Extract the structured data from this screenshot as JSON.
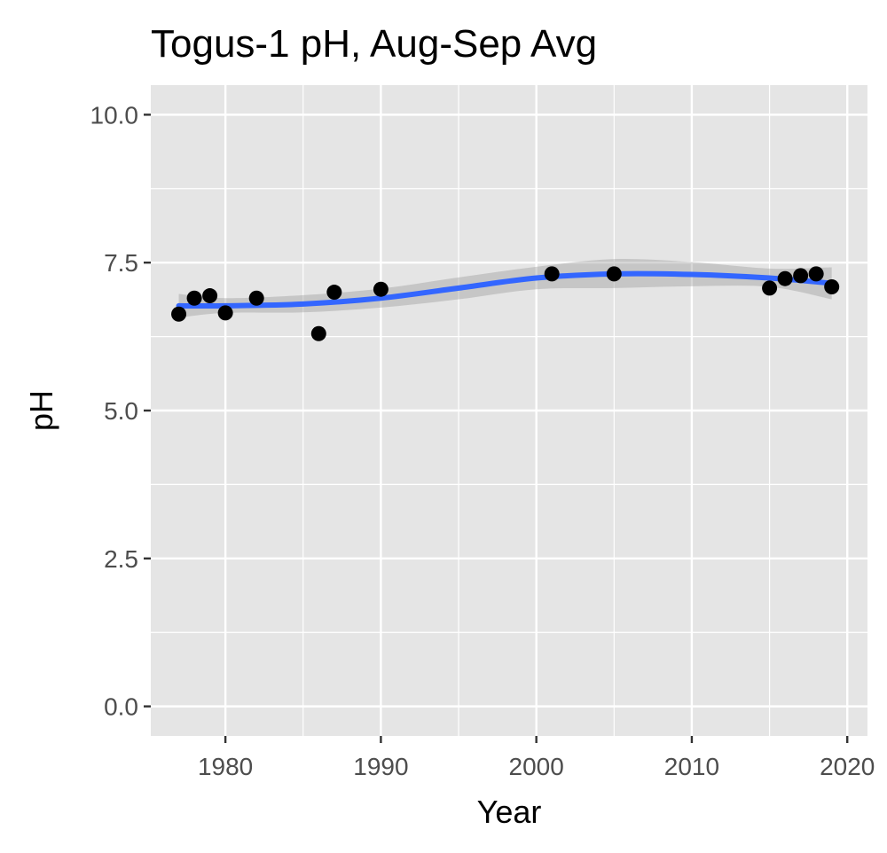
{
  "chart_data": {
    "type": "scatter",
    "title": "Togus-1 pH, Aug-Sep Avg",
    "xlabel": "Year",
    "ylabel": "pH",
    "xlim": [
      1975.2,
      2021.3
    ],
    "ylim": [
      -0.5,
      10.5
    ],
    "x_ticks": [
      1980,
      1990,
      2000,
      2010,
      2020
    ],
    "x_tick_labels": [
      "1980",
      "1990",
      "2000",
      "2010",
      "2020"
    ],
    "y_ticks": [
      0,
      2.5,
      5,
      7.5,
      10
    ],
    "y_tick_labels": [
      "0.0",
      "2.5",
      "5.0",
      "7.5",
      "10.0"
    ],
    "grid": true,
    "legend": "none",
    "colors": {
      "panel_background": "#e5e5e5",
      "grid": "#ffffff",
      "points": "#000000",
      "smooth_line": "#3366ff",
      "confidence_band": "#999999"
    },
    "series": [
      {
        "kind": "points",
        "x": [
          1977,
          1978,
          1979,
          1980,
          1982,
          1986,
          1987,
          1990,
          2001,
          2005,
          2015,
          2016,
          2017,
          2018,
          2019
        ],
        "y": [
          6.63,
          6.9,
          6.94,
          6.65,
          6.9,
          6.3,
          7.0,
          7.05,
          7.31,
          7.31,
          7.07,
          7.23,
          7.28,
          7.31,
          7.09
        ]
      },
      {
        "kind": "smooth",
        "x": [
          1977,
          1980,
          1985,
          1990,
          1995,
          2000,
          2005,
          2010,
          2015,
          2019
        ],
        "y": [
          6.77,
          6.77,
          6.8,
          6.9,
          7.07,
          7.24,
          7.31,
          7.3,
          7.24,
          7.15
        ],
        "ci_lower": [
          6.57,
          6.65,
          6.66,
          6.74,
          6.88,
          7.05,
          7.07,
          7.1,
          7.09,
          6.88
        ],
        "ci_upper": [
          6.97,
          6.9,
          6.95,
          7.06,
          7.25,
          7.43,
          7.56,
          7.51,
          7.4,
          7.42
        ]
      }
    ]
  }
}
